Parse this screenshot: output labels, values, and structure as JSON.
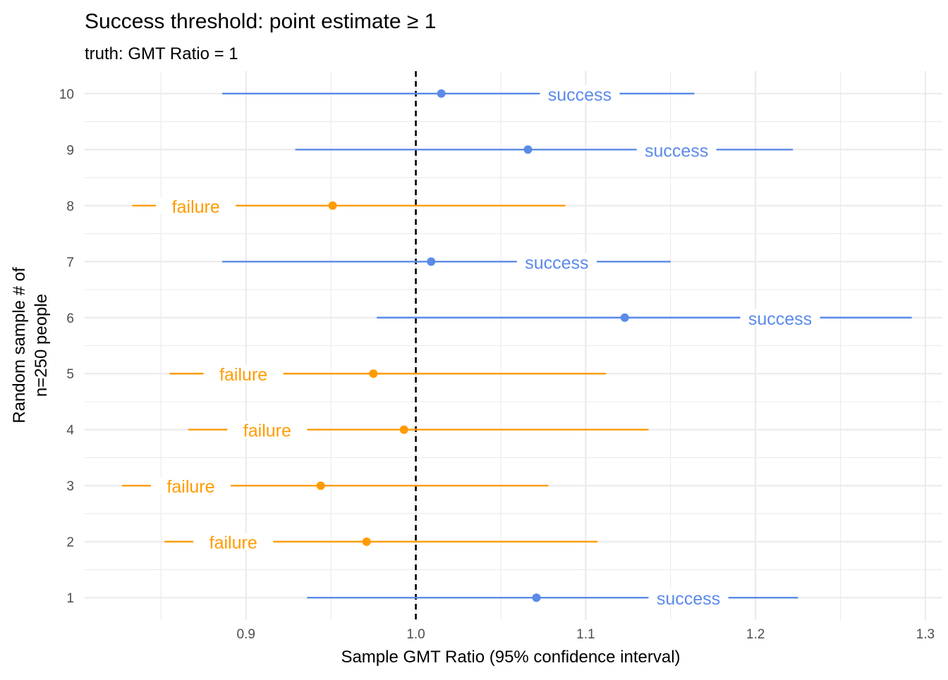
{
  "chart_data": {
    "type": "scatter",
    "title": "Success threshold: point estimate ≥ 1",
    "subtitle": "truth: GMT Ratio = 1",
    "xlabel": "Sample GMT Ratio (95% confidence interval)",
    "ylabel_line1": "Random sample # of",
    "ylabel_line2": "n=250 people",
    "xlim": [
      0.805,
      1.31
    ],
    "ylim": [
      0.6,
      10.4
    ],
    "x_ticks": [
      0.9,
      1.0,
      1.1,
      1.2,
      1.3
    ],
    "x_tick_labels": [
      "0.9",
      "1.0",
      "1.1",
      "1.2",
      "1.3"
    ],
    "y_ticks": [
      1,
      2,
      3,
      4,
      5,
      6,
      7,
      8,
      9,
      10
    ],
    "y_tick_labels": [
      "1",
      "2",
      "3",
      "4",
      "5",
      "6",
      "7",
      "8",
      "9",
      "10"
    ],
    "reference_line": {
      "x": 1.0,
      "style": "dashed",
      "color": "#000000"
    },
    "grid": true,
    "legend": "none",
    "colors": {
      "success": "#5b8ae8",
      "failure": "#ff9b00",
      "grid": "#ebebeb",
      "tick_text": "#4d4d4d"
    },
    "series": [
      {
        "sample": 1,
        "estimate": 1.071,
        "lower": 0.936,
        "upper": 1.225,
        "status": "success",
        "label": "success",
        "label_x": 1.1605
      },
      {
        "sample": 2,
        "estimate": 0.971,
        "lower": 0.852,
        "upper": 1.107,
        "status": "failure",
        "label": "failure",
        "label_x": 0.8925
      },
      {
        "sample": 3,
        "estimate": 0.944,
        "lower": 0.827,
        "upper": 1.078,
        "status": "failure",
        "label": "failure",
        "label_x": 0.8675
      },
      {
        "sample": 4,
        "estimate": 0.993,
        "lower": 0.866,
        "upper": 1.137,
        "status": "failure",
        "label": "failure",
        "label_x": 0.9125
      },
      {
        "sample": 5,
        "estimate": 0.975,
        "lower": 0.855,
        "upper": 1.112,
        "status": "failure",
        "label": "failure",
        "label_x": 0.8985
      },
      {
        "sample": 6,
        "estimate": 1.123,
        "lower": 0.977,
        "upper": 1.292,
        "status": "success",
        "label": "success",
        "label_x": 1.2145
      },
      {
        "sample": 7,
        "estimate": 1.009,
        "lower": 0.886,
        "upper": 1.15,
        "status": "success",
        "label": "success",
        "label_x": 1.083
      },
      {
        "sample": 8,
        "estimate": 0.951,
        "lower": 0.833,
        "upper": 1.088,
        "status": "failure",
        "label": "failure",
        "label_x": 0.8705
      },
      {
        "sample": 9,
        "estimate": 1.066,
        "lower": 0.929,
        "upper": 1.222,
        "status": "success",
        "label": "success",
        "label_x": 1.1535
      },
      {
        "sample": 10,
        "estimate": 1.015,
        "lower": 0.886,
        "upper": 1.164,
        "status": "success",
        "label": "success",
        "label_x": 1.0965
      }
    ]
  }
}
